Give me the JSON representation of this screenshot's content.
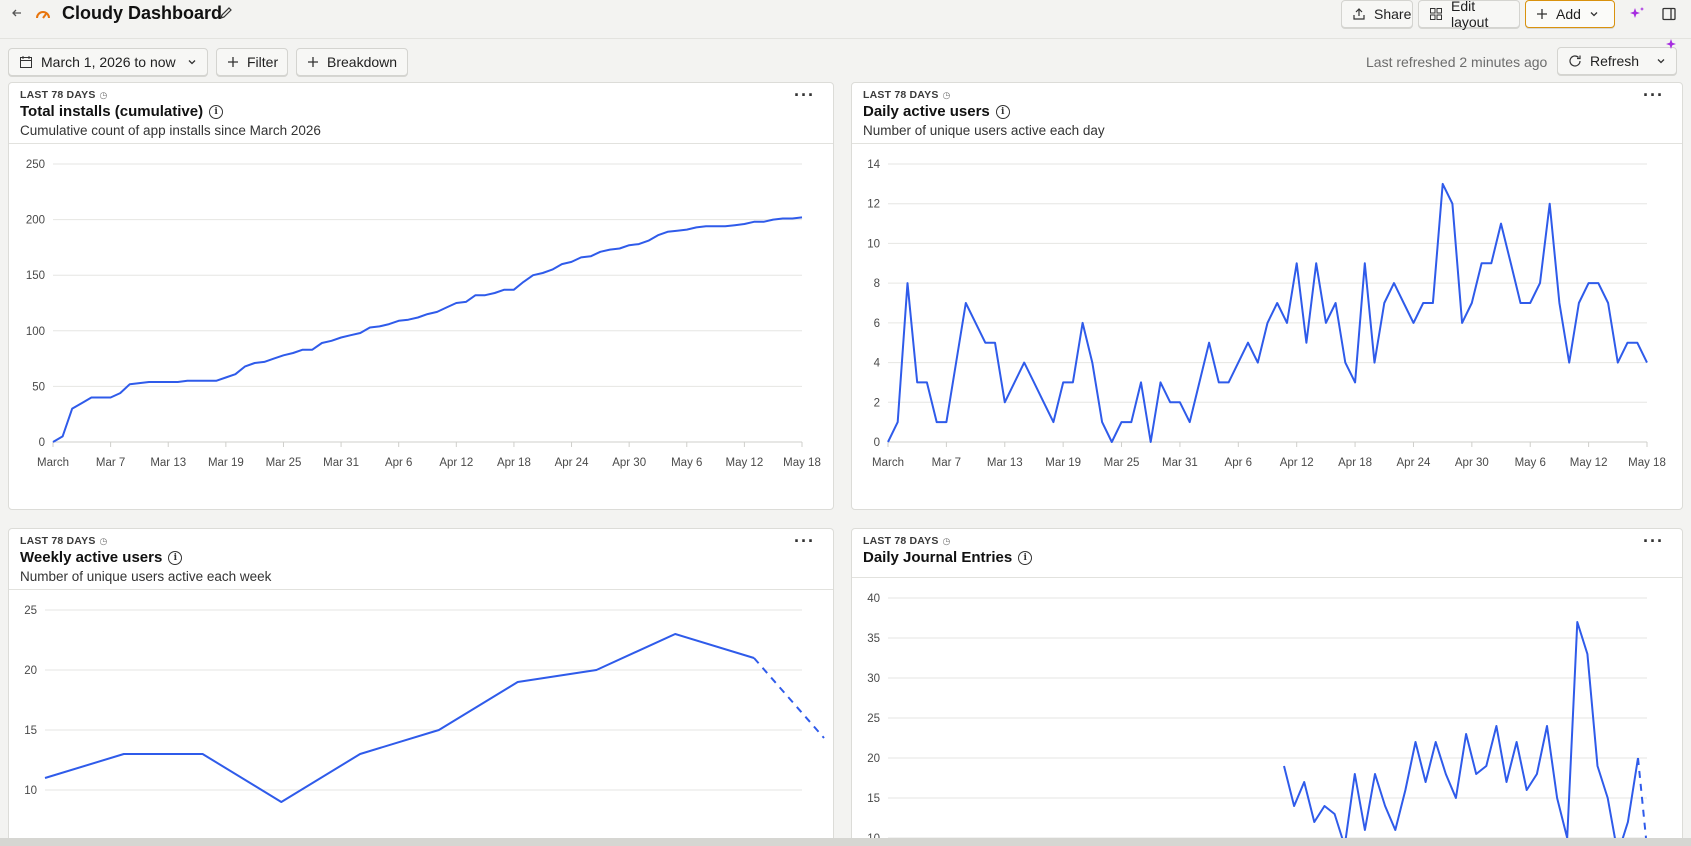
{
  "header": {
    "title": "Cloudy Dashboard",
    "share_label": "Share",
    "edit_layout_label": "Edit layout",
    "add_label": "Add"
  },
  "toolbar": {
    "date_range": "March 1, 2026 to now",
    "filter_label": "Filter",
    "breakdown_label": "Breakdown",
    "last_refreshed": "Last refreshed 2 minutes ago",
    "refresh_label": "Refresh"
  },
  "colors": {
    "series": "#2f5bea",
    "accent_add": "#d9920e",
    "sparkle": "#a62de0"
  },
  "x_ticks": [
    "March",
    "Mar 7",
    "Mar 13",
    "Mar 19",
    "Mar 25",
    "Mar 31",
    "Apr 6",
    "Apr 12",
    "Apr 18",
    "Apr 24",
    "Apr 30",
    "May 6",
    "May 12",
    "May 18"
  ],
  "panels": [
    {
      "range_label": "LAST 78 DAYS",
      "title": "Total installs (cumulative)",
      "description": "Cumulative count of app installs since March 2026",
      "chart_data": {
        "type": "line",
        "ylim": [
          0,
          250
        ],
        "y_ticks": [
          0,
          50,
          100,
          150,
          200,
          250
        ],
        "x_ticks": [
          "March",
          "Mar 7",
          "Mar 13",
          "Mar 19",
          "Mar 25",
          "Mar 31",
          "Apr 6",
          "Apr 12",
          "Apr 18",
          "Apr 24",
          "Apr 30",
          "May 6",
          "May 12",
          "May 18"
        ],
        "values": [
          0,
          5,
          30,
          35,
          40,
          40,
          40,
          44,
          52,
          53,
          54,
          54,
          54,
          54,
          55,
          55,
          55,
          55,
          58,
          61,
          68,
          71,
          72,
          75,
          78,
          80,
          83,
          83,
          89,
          91,
          94,
          96,
          98,
          103,
          104,
          106,
          109,
          110,
          112,
          115,
          117,
          121,
          125,
          126,
          132,
          132,
          134,
          137,
          137,
          144,
          150,
          152,
          155,
          160,
          162,
          166,
          167,
          171,
          173,
          174,
          177,
          178,
          181,
          186,
          189,
          190,
          191,
          193,
          194,
          194,
          194,
          195,
          196,
          198,
          198,
          200,
          201,
          201,
          202
        ]
      }
    },
    {
      "range_label": "LAST 78 DAYS",
      "title": "Daily active users",
      "description": "Number of unique users active each day",
      "chart_data": {
        "type": "line",
        "ylim": [
          0,
          14
        ],
        "y_ticks": [
          0,
          2,
          4,
          6,
          8,
          10,
          12,
          14
        ],
        "x_ticks": [
          "March",
          "Mar 7",
          "Mar 13",
          "Mar 19",
          "Mar 25",
          "Mar 31",
          "Apr 6",
          "Apr 12",
          "Apr 18",
          "Apr 24",
          "Apr 30",
          "May 6",
          "May 12",
          "May 18"
        ],
        "values": [
          0,
          1,
          8,
          3,
          3,
          1,
          1,
          4,
          7,
          6,
          5,
          5,
          2,
          3,
          4,
          3,
          2,
          1,
          3,
          3,
          6,
          4,
          1,
          0,
          1,
          1,
          3,
          0,
          3,
          2,
          2,
          1,
          3,
          5,
          3,
          3,
          4,
          5,
          4,
          6,
          7,
          6,
          9,
          5,
          9,
          6,
          7,
          4,
          3,
          9,
          4,
          7,
          8,
          7,
          6,
          7,
          7,
          13,
          12,
          6,
          7,
          9,
          9,
          11,
          9,
          7,
          7,
          8,
          12,
          7,
          4,
          7,
          8,
          8,
          7,
          4,
          5,
          5,
          4
        ]
      }
    },
    {
      "range_label": "LAST 78 DAYS",
      "title": "Weekly active users",
      "description": "Number of unique users active each week",
      "chart_data": {
        "type": "line",
        "y_ticks": [
          10,
          15,
          20,
          25
        ],
        "values": [
          11,
          13,
          13,
          9,
          13,
          15,
          19,
          20,
          23,
          21
        ],
        "partial_last_segment": "dashed"
      }
    },
    {
      "range_label": "LAST 78 DAYS",
      "title": "Daily Journal Entries",
      "description": "",
      "chart_data": {
        "type": "line",
        "y_ticks": [
          10,
          15,
          20,
          25,
          30,
          35,
          40
        ],
        "values": [
          19,
          14,
          17,
          12,
          14,
          13,
          9,
          18,
          11,
          18,
          14,
          11,
          16,
          22,
          17,
          22,
          18,
          15,
          23,
          18,
          19,
          24,
          17,
          22,
          16,
          18,
          24,
          15,
          10,
          37,
          33,
          19,
          15,
          8,
          12,
          20
        ],
        "partial_last_segment": "dashed"
      }
    }
  ]
}
